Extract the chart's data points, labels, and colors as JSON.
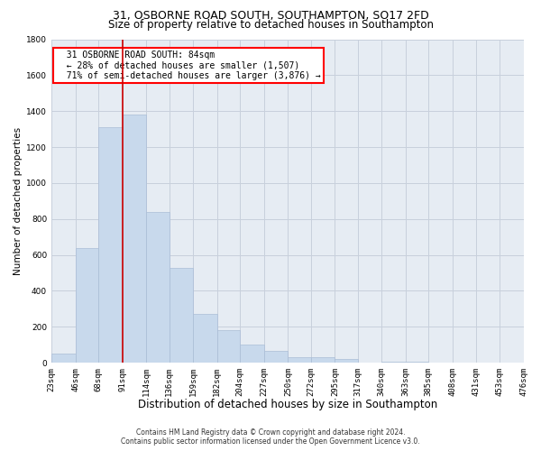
{
  "title": "31, OSBORNE ROAD SOUTH, SOUTHAMPTON, SO17 2FD",
  "subtitle": "Size of property relative to detached houses in Southampton",
  "xlabel": "Distribution of detached houses by size in Southampton",
  "ylabel": "Number of detached properties",
  "footer_line1": "Contains HM Land Registry data © Crown copyright and database right 2024.",
  "footer_line2": "Contains public sector information licensed under the Open Government Licence v3.0.",
  "annotation_line1": "  31 OSBORNE ROAD SOUTH: 84sqm",
  "annotation_line2": "  ← 28% of detached houses are smaller (1,507)",
  "annotation_line3": "  71% of semi-detached houses are larger (3,876) →",
  "property_size": 84,
  "bar_color": "#c8d9ec",
  "bar_edge_color": "#aabdd6",
  "vline_color": "#cc0000",
  "vline_x": 91,
  "bins": [
    23,
    46,
    68,
    91,
    114,
    136,
    159,
    182,
    204,
    227,
    250,
    272,
    295,
    317,
    340,
    363,
    385,
    408,
    431,
    453,
    476
  ],
  "bin_labels": [
    "23sqm",
    "46sqm",
    "68sqm",
    "91sqm",
    "114sqm",
    "136sqm",
    "159sqm",
    "182sqm",
    "204sqm",
    "227sqm",
    "250sqm",
    "272sqm",
    "295sqm",
    "317sqm",
    "340sqm",
    "363sqm",
    "385sqm",
    "408sqm",
    "431sqm",
    "453sqm",
    "476sqm"
  ],
  "values": [
    50,
    640,
    1310,
    1380,
    840,
    530,
    270,
    180,
    100,
    65,
    30,
    30,
    20,
    0,
    5,
    5,
    0,
    0,
    0,
    0
  ],
  "ylim": [
    0,
    1800
  ],
  "yticks": [
    0,
    200,
    400,
    600,
    800,
    1000,
    1200,
    1400,
    1600,
    1800
  ],
  "grid_color": "#c8d0dc",
  "bg_color": "#e6ecf3",
  "fig_bg": "#ffffff",
  "title_fontsize": 9,
  "subtitle_fontsize": 8.5,
  "xlabel_fontsize": 8.5,
  "ylabel_fontsize": 7.5,
  "tick_fontsize": 6.5,
  "footer_fontsize": 5.5,
  "ann_fontsize": 7
}
